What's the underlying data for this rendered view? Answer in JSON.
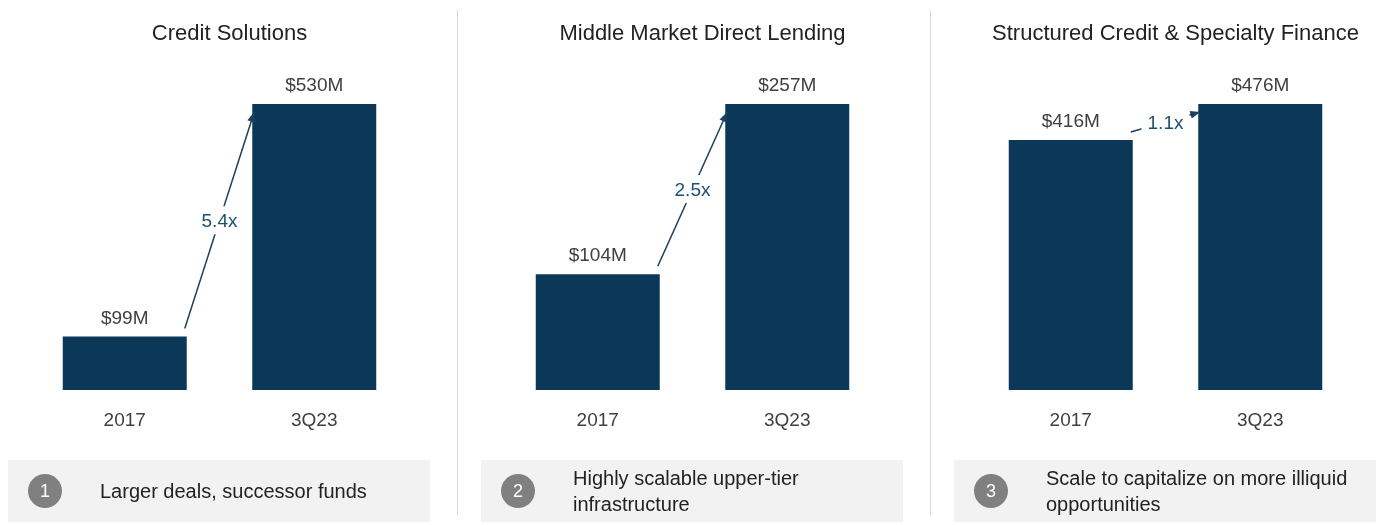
{
  "chart_data": [
    {
      "type": "bar",
      "title": "Credit Solutions",
      "categories": [
        "2017",
        "3Q23"
      ],
      "values": [
        99,
        530
      ],
      "value_labels": [
        "$99M",
        "$530M"
      ],
      "color": "#0b3858",
      "annotations": [
        "5.4x",
        "1",
        "Larger deals, successor funds"
      ]
    },
    {
      "type": "bar",
      "title": "Middle Market Direct Lending",
      "categories": [
        "2017",
        "3Q23"
      ],
      "values": [
        104,
        257
      ],
      "value_labels": [
        "$104M",
        "$257M"
      ],
      "color": "#0b3858",
      "annotations": [
        "2.5x",
        "2",
        "Highly scalable upper-tier infrastructure"
      ]
    },
    {
      "type": "bar",
      "title": "Structured Credit & Specialty Finance",
      "categories": [
        "2017",
        "3Q23"
      ],
      "values": [
        416,
        476
      ],
      "value_labels": [
        "$416M",
        "$476M"
      ],
      "color": "#0b3858",
      "annotations": [
        "1.1x",
        "3",
        "Scale to capitalize on more illiquid opportunities"
      ]
    }
  ]
}
